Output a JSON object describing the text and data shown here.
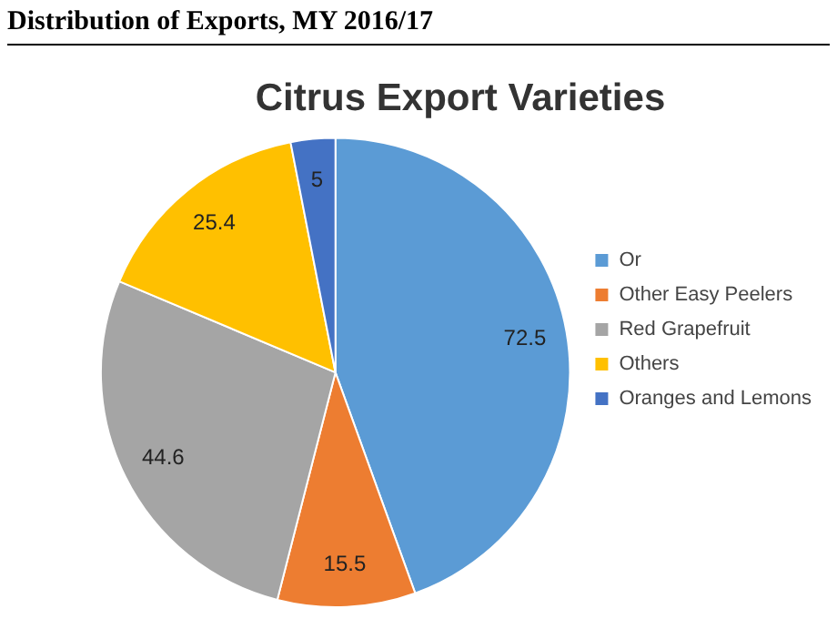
{
  "chart_data": {
    "type": "pie",
    "title": "Citrus Export Varieties",
    "annotations": [
      "Distribution of Exports, MY 2016/17"
    ],
    "categories": [
      "Or",
      "Other Easy Peelers",
      "Red Grapefruit",
      "Others",
      "Oranges and Lemons"
    ],
    "values": [
      72.5,
      15.5,
      44.6,
      25.4,
      5
    ],
    "colors": [
      "#5b9bd5",
      "#ed7d31",
      "#a5a5a5",
      "#ffc000",
      "#4472c4"
    ],
    "data_labels": true,
    "legend": "right"
  }
}
